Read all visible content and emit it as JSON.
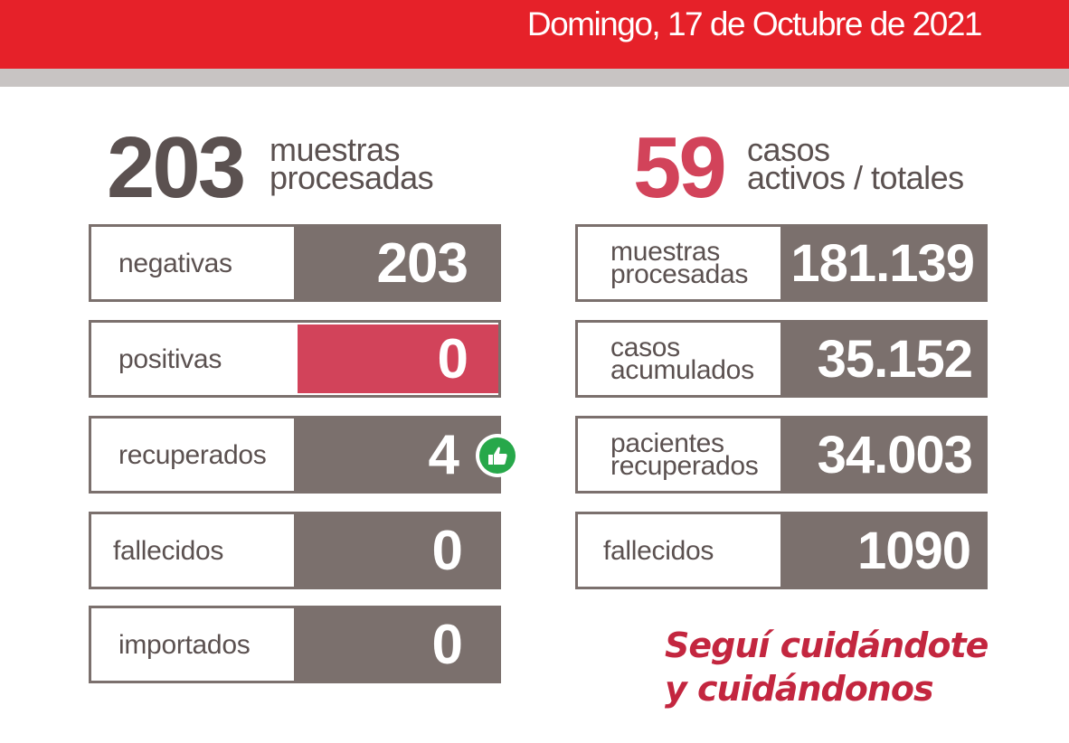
{
  "header": {
    "date": "Domingo, 17 de Octubre de 2021",
    "colors": {
      "bar": "#e62129",
      "shadow": "#c8c4c3"
    }
  },
  "daily": {
    "total": "203",
    "caption_line1": "muestras",
    "caption_line2": "procesadas",
    "rows": [
      {
        "label": "negativas",
        "value": "203"
      },
      {
        "label": "positivas",
        "value": "0",
        "highlight": true
      },
      {
        "label": "recuperados",
        "value": "4",
        "icon": "thumbs-up-icon"
      },
      {
        "label": "fallecidos",
        "value": "0"
      },
      {
        "label": "importados",
        "value": "0"
      }
    ]
  },
  "totals": {
    "active": "59",
    "caption_line1": "casos",
    "caption_line2": "activos / totales",
    "rows": [
      {
        "label_line1": "muestras",
        "label_line2": "procesadas",
        "value": "181.139"
      },
      {
        "label_line1": "casos",
        "label_line2": "acumulados",
        "value": "35.152"
      },
      {
        "label_line1": "pacientes",
        "label_line2": "recuperados",
        "value": "34.003"
      },
      {
        "label_line1": "fallecidos",
        "label_line2": "",
        "value": "1090"
      }
    ]
  },
  "slogan": {
    "line1": "Seguí cuidándote",
    "line2": "y cuidándonos"
  },
  "colors": {
    "gray": "#7b706d",
    "text_gray": "#5b5150",
    "red": "#d2435a",
    "accent_red": "#c3263f",
    "green": "#27a84a"
  }
}
